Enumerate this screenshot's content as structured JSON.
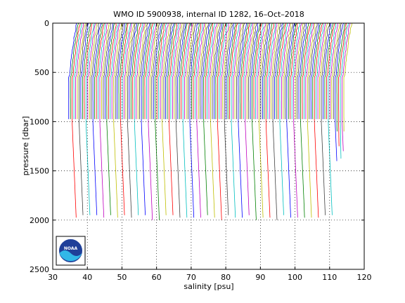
{
  "chart_data": {
    "type": "line",
    "title": "WMO ID 5900938, internal ID 1282, 16–Oct–2018",
    "xlabel": "salinity [psu]",
    "ylabel": "pressure [dbar]",
    "xlim": [
      30,
      120
    ],
    "ylim": [
      0,
      2500
    ],
    "y_reversed": true,
    "grid": true,
    "grid_style": "dotted",
    "xticks": [
      30,
      40,
      50,
      60,
      70,
      80,
      90,
      100,
      110,
      120
    ],
    "yticks": [
      0,
      500,
      1000,
      1500,
      2000,
      2500
    ],
    "series_description": "Waterfall of successive float profiles, each offset by about 0.5 psu from the previous one (raw salinity near 34.5-35 psu).",
    "profile_offsets": {
      "start": 34.6,
      "step": 0.5,
      "count": 160
    },
    "profile_colors": [
      "#0000ff",
      "#008000",
      "#ff0000",
      "#00bfbf",
      "#bf00bf",
      "#bfbf00",
      "#404040"
    ],
    "notes": [
      "Most profiles reach about 1000 dbar; roughly every fourth profile reaches about 2000 dbar.",
      "The final profiles are short, ending between about 1100 and 1500 dbar."
    ]
  },
  "logo": {
    "text": "NOAA"
  }
}
